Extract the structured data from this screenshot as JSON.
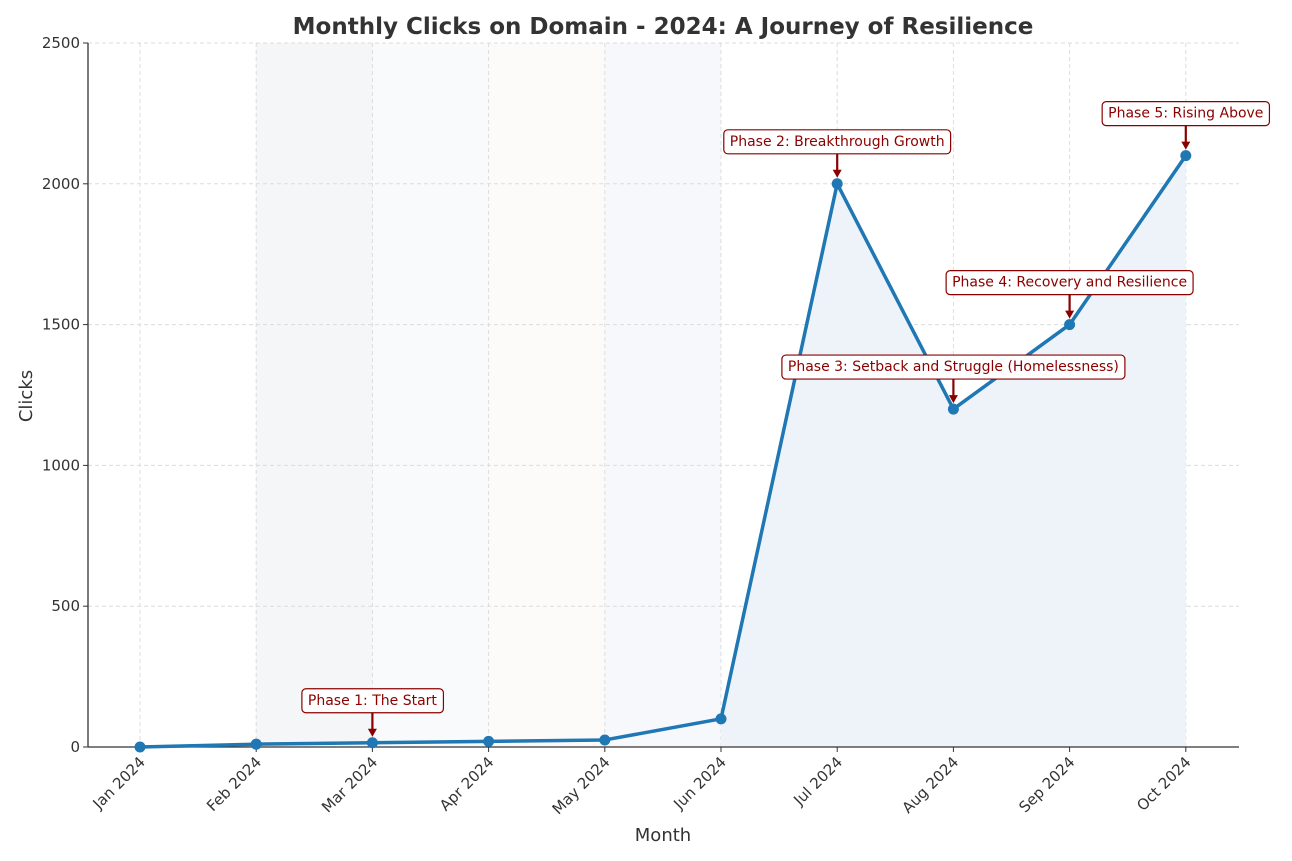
{
  "chart_data": {
    "type": "line",
    "title": "Monthly Clicks on Domain - 2024: A Journey of Resilience",
    "xlabel": "Month",
    "ylabel": "Clicks",
    "ylim": [
      0,
      2500
    ],
    "yticks": [
      0,
      500,
      1000,
      1500,
      2000,
      2500
    ],
    "grid": true,
    "categories": [
      "Jan 2024",
      "Feb 2024",
      "Mar 2024",
      "Apr 2024",
      "May 2024",
      "Jun 2024",
      "Jul 2024",
      "Aug 2024",
      "Sep 2024",
      "Oct 2024"
    ],
    "series": [
      {
        "values": [
          0,
          10,
          15,
          20,
          25,
          100,
          2000,
          1200,
          1500,
          2100
        ],
        "color": "#1f77b4"
      }
    ],
    "annotations": [
      {
        "category": "Mar 2024",
        "value": 15,
        "text": "Phase 1: The Start"
      },
      {
        "category": "Jul 2024",
        "value": 2000,
        "text": "Phase 2: Breakthrough Growth"
      },
      {
        "category": "Aug 2024",
        "value": 1200,
        "text": "Phase 3: Setback and Struggle (Homelessness)"
      },
      {
        "category": "Sep 2024",
        "value": 1500,
        "text": "Phase 4: Recovery and Resilience"
      },
      {
        "category": "Oct 2024",
        "value": 2100,
        "text": "Phase 5: Rising Above"
      }
    ],
    "annotation_color": "#8b0000",
    "phase_shading": [
      {
        "from": "Feb 2024",
        "to": "Mar 2024",
        "color": "#f5f6f8"
      },
      {
        "from": "Mar 2024",
        "to": "Apr 2024",
        "color": "#f9fafb"
      },
      {
        "from": "Apr 2024",
        "to": "May 2024",
        "color": "#fcfbfa"
      },
      {
        "from": "May 2024",
        "to": "Jun 2024",
        "color": "#f6f8fc"
      }
    ],
    "fill_under_line": {
      "from": "Jun 2024",
      "color": "#eef3fa"
    }
  }
}
